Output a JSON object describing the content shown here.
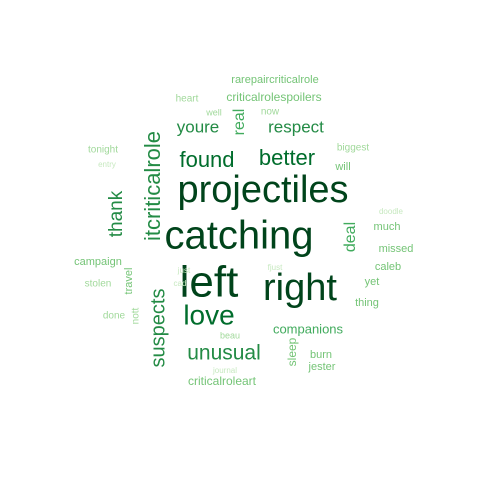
{
  "palette": {
    "darkest": "#00441b",
    "dark": "#006d2c",
    "mid_dark": "#238b45",
    "mid": "#41ab5d",
    "light": "#74c476",
    "lighter": "#a1d99b",
    "lightest": "#c7e9c0"
  },
  "words": [
    {
      "text": "projectiles",
      "color": "darkest"
    },
    {
      "text": "catching",
      "color": "darkest"
    },
    {
      "text": "left",
      "color": "darkest"
    },
    {
      "text": "right",
      "color": "darkest"
    },
    {
      "text": "love",
      "color": "dark"
    },
    {
      "text": "found",
      "color": "dark"
    },
    {
      "text": "better",
      "color": "dark"
    },
    {
      "text": "itcriticalrole",
      "color": "mid_dark"
    },
    {
      "text": "suspects",
      "color": "mid_dark"
    },
    {
      "text": "unusual",
      "color": "mid_dark"
    },
    {
      "text": "thank",
      "color": "mid_dark"
    },
    {
      "text": "youre",
      "color": "mid_dark"
    },
    {
      "text": "respect",
      "color": "mid_dark"
    },
    {
      "text": "real",
      "color": "mid"
    },
    {
      "text": "deal",
      "color": "mid"
    },
    {
      "text": "companions",
      "color": "mid"
    },
    {
      "text": "criticalrolespoilers",
      "color": "light"
    },
    {
      "text": "rarepaircriticalrole",
      "color": "light"
    },
    {
      "text": "will",
      "color": "light"
    },
    {
      "text": "sleep",
      "color": "light"
    },
    {
      "text": "burn",
      "color": "light"
    },
    {
      "text": "criticalroleart",
      "color": "light"
    },
    {
      "text": "travel",
      "color": "light"
    },
    {
      "text": "campaign",
      "color": "light"
    },
    {
      "text": "much",
      "color": "light"
    },
    {
      "text": "missed",
      "color": "light"
    },
    {
      "text": "caleb",
      "color": "light"
    },
    {
      "text": "yet",
      "color": "light"
    },
    {
      "text": "thing",
      "color": "light"
    },
    {
      "text": "jester",
      "color": "light"
    },
    {
      "text": "biggest",
      "color": "lighter"
    },
    {
      "text": "tonight",
      "color": "lighter"
    },
    {
      "text": "heart",
      "color": "lighter"
    },
    {
      "text": "stolen",
      "color": "lighter"
    },
    {
      "text": "done",
      "color": "lighter"
    },
    {
      "text": "nott",
      "color": "lighter"
    },
    {
      "text": "now",
      "color": "lighter"
    },
    {
      "text": "well",
      "color": "lighter"
    },
    {
      "text": "beau",
      "color": "lighter"
    },
    {
      "text": "entry",
      "color": "lightest"
    },
    {
      "text": "doodle",
      "color": "lightest"
    },
    {
      "text": "just",
      "color": "lightest"
    },
    {
      "text": "cad",
      "color": "lightest"
    },
    {
      "text": "journal",
      "color": "lightest"
    },
    {
      "text": "fjust",
      "color": "lightest"
    }
  ]
}
